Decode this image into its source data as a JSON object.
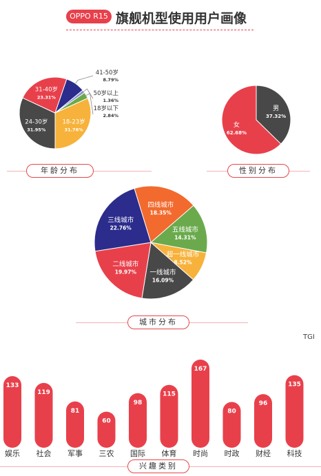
{
  "header": {
    "badge": "OPPO R15",
    "title": "旗舰机型使用用户画像"
  },
  "colors": {
    "red": "#e8404b",
    "dark": "#484848",
    "orange": "#f26a2e",
    "yellow": "#f7b23b",
    "navy": "#2b2c8c",
    "green": "#6aaa4c",
    "lavender": "#8a8fd0"
  },
  "captions": {
    "age": "年龄分布",
    "gender": "性别分布",
    "city": "城市分布",
    "interest": "兴趣类别"
  },
  "tgi_label": "TGI",
  "chart_data": [
    {
      "type": "pie",
      "caption": "年龄分布",
      "slices": [
        {
          "label": "24-30岁",
          "value": 31.95,
          "pct": "31.95%",
          "color": "#484848"
        },
        {
          "label": "31-40岁",
          "value": 23.31,
          "pct": "23.31%",
          "color": "#e8404b"
        },
        {
          "label": "41-50岁",
          "value": 8.79,
          "pct": "8.79%",
          "color": "#2b2c8c"
        },
        {
          "label": "50岁以上",
          "value": 1.36,
          "pct": "1.36%",
          "color": "#8a8fd0"
        },
        {
          "label": "18岁以下",
          "value": 2.84,
          "pct": "2.84%",
          "color": "#6aaa4c"
        },
        {
          "label": "18-23岁",
          "value": 31.76,
          "pct": "31.76%",
          "color": "#f7b23b"
        }
      ]
    },
    {
      "type": "pie",
      "caption": "性别分布",
      "slices": [
        {
          "label": "男",
          "value": 37.32,
          "pct": "37.32%",
          "color": "#484848"
        },
        {
          "label": "女",
          "value": 62.68,
          "pct": "62.68%",
          "color": "#e8404b"
        }
      ]
    },
    {
      "type": "pie",
      "caption": "城市分布",
      "slices": [
        {
          "label": "四线城市",
          "value": 18.35,
          "pct": "18.35%",
          "color": "#f26a2e"
        },
        {
          "label": "五线城市",
          "value": 14.31,
          "pct": "14.31%",
          "color": "#6aaa4c"
        },
        {
          "label": "超一线城市",
          "value": 8.52,
          "pct": "8.52%",
          "color": "#f7b23b"
        },
        {
          "label": "一线城市",
          "value": 16.09,
          "pct": "16.09%",
          "color": "#484848"
        },
        {
          "label": "二线城市",
          "value": 19.97,
          "pct": "19.97%",
          "color": "#e8404b"
        },
        {
          "label": "三线城市",
          "value": 22.76,
          "pct": "22.76%",
          "color": "#2b2c8c"
        }
      ]
    },
    {
      "type": "bar",
      "caption": "兴趣类别",
      "ylabel": "TGI",
      "categories": [
        "娱乐",
        "社会",
        "军事",
        "三农",
        "国际",
        "体育",
        "时尚",
        "时政",
        "财经",
        "科技"
      ],
      "values": [
        133,
        119,
        81,
        60,
        98,
        115,
        167,
        80,
        96,
        135
      ],
      "ylim": [
        0,
        167
      ],
      "color": "#e8404b"
    }
  ]
}
